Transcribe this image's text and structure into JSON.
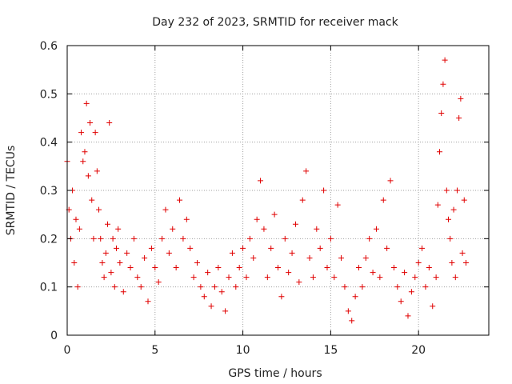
{
  "chart_data": {
    "type": "scatter",
    "title": "Day 232 of 2023, SRMTID for receiver mack",
    "xlabel": "GPS time / hours",
    "ylabel": "SRMTID / TECUs",
    "xlim": [
      0,
      24
    ],
    "ylim": [
      0,
      0.6
    ],
    "xticks": [
      0,
      5,
      10,
      15,
      20
    ],
    "xtick_labels": [
      "0",
      "5",
      "10",
      "15",
      "20"
    ],
    "yticks": [
      0,
      0.1,
      0.2,
      0.3,
      0.4,
      0.5,
      0.6
    ],
    "ytick_labels": [
      "0",
      "0.1",
      "0.2",
      "0.3",
      "0.4",
      "0.5",
      "0.6"
    ],
    "grid": true,
    "marker": "+",
    "color": "#e00000",
    "series": [
      {
        "name": "mack",
        "x": [
          0.0,
          0.1,
          0.2,
          0.3,
          0.4,
          0.5,
          0.6,
          0.7,
          0.8,
          0.9,
          1.0,
          1.1,
          1.2,
          1.3,
          1.4,
          1.5,
          1.6,
          1.7,
          1.8,
          1.9,
          2.0,
          2.1,
          2.2,
          2.3,
          2.4,
          2.5,
          2.6,
          2.7,
          2.8,
          2.9,
          3.0,
          3.2,
          3.4,
          3.6,
          3.8,
          4.0,
          4.2,
          4.4,
          4.6,
          4.8,
          5.0,
          5.2,
          5.4,
          5.6,
          5.8,
          6.0,
          6.2,
          6.4,
          6.6,
          6.8,
          7.0,
          7.2,
          7.4,
          7.6,
          7.8,
          8.0,
          8.2,
          8.4,
          8.6,
          8.8,
          9.0,
          9.2,
          9.4,
          9.6,
          9.8,
          10.0,
          10.2,
          10.4,
          10.6,
          10.8,
          11.0,
          11.2,
          11.4,
          11.6,
          11.8,
          12.0,
          12.2,
          12.4,
          12.6,
          12.8,
          13.0,
          13.2,
          13.4,
          13.6,
          13.8,
          14.0,
          14.2,
          14.4,
          14.6,
          14.8,
          15.0,
          15.2,
          15.4,
          15.6,
          15.8,
          16.0,
          16.2,
          16.4,
          16.6,
          16.8,
          17.0,
          17.2,
          17.4,
          17.6,
          17.8,
          18.0,
          18.2,
          18.4,
          18.6,
          18.8,
          19.0,
          19.2,
          19.4,
          19.6,
          19.8,
          20.0,
          20.2,
          20.4,
          20.6,
          20.8,
          21.0,
          21.1,
          21.2,
          21.3,
          21.4,
          21.5,
          21.6,
          21.7,
          21.8,
          21.9,
          22.0,
          22.1,
          22.2,
          22.3,
          22.4,
          22.5,
          22.6,
          22.7
        ],
        "y": [
          0.36,
          0.26,
          0.2,
          0.3,
          0.15,
          0.24,
          0.1,
          0.22,
          0.42,
          0.36,
          0.38,
          0.48,
          0.33,
          0.44,
          0.28,
          0.2,
          0.42,
          0.34,
          0.26,
          0.2,
          0.15,
          0.12,
          0.17,
          0.23,
          0.44,
          0.13,
          0.2,
          0.1,
          0.18,
          0.22,
          0.15,
          0.09,
          0.17,
          0.14,
          0.2,
          0.12,
          0.1,
          0.16,
          0.07,
          0.18,
          0.14,
          0.11,
          0.2,
          0.26,
          0.17,
          0.22,
          0.14,
          0.28,
          0.2,
          0.24,
          0.18,
          0.12,
          0.15,
          0.1,
          0.08,
          0.13,
          0.06,
          0.1,
          0.14,
          0.09,
          0.05,
          0.12,
          0.17,
          0.1,
          0.14,
          0.18,
          0.12,
          0.2,
          0.16,
          0.24,
          0.32,
          0.22,
          0.12,
          0.18,
          0.25,
          0.14,
          0.08,
          0.2,
          0.13,
          0.17,
          0.23,
          0.11,
          0.28,
          0.34,
          0.16,
          0.12,
          0.22,
          0.18,
          0.3,
          0.14,
          0.2,
          0.12,
          0.27,
          0.16,
          0.1,
          0.05,
          0.03,
          0.08,
          0.14,
          0.1,
          0.16,
          0.2,
          0.13,
          0.22,
          0.12,
          0.28,
          0.18,
          0.32,
          0.14,
          0.1,
          0.07,
          0.13,
          0.04,
          0.09,
          0.12,
          0.15,
          0.18,
          0.1,
          0.14,
          0.06,
          0.12,
          0.27,
          0.38,
          0.46,
          0.52,
          0.57,
          0.3,
          0.24,
          0.2,
          0.15,
          0.26,
          0.12,
          0.3,
          0.45,
          0.49,
          0.17,
          0.28,
          0.15
        ]
      }
    ]
  }
}
